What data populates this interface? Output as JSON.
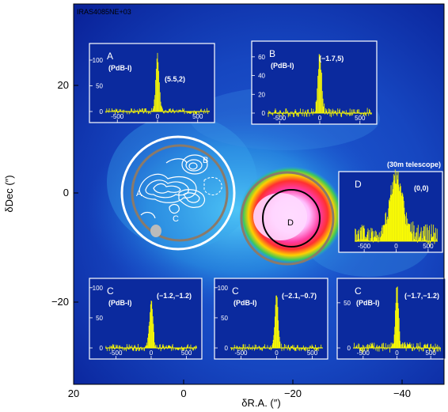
{
  "figure": {
    "source_name": "IRAS4085NE+03",
    "xlabel": "δR.A. (″)",
    "ylabel": "δDec (″)",
    "colors": {
      "background": "#0b2a9e",
      "spectrum": "#ffff00",
      "contour": "#ffffff",
      "aperture_outer": "#ffffff",
      "aperture_inner": "#8a7a6a",
      "aperture_d": "#000000"
    }
  },
  "chart_data": {
    "type": "image",
    "x_axis": {
      "label": "δR.A. (″)",
      "ticks": [
        "20",
        "0",
        "−20",
        "−40"
      ],
      "range": [
        20,
        -45
      ],
      "reversed": true
    },
    "y_axis": {
      "label": "δDec (″)",
      "ticks": [
        "−20",
        "0",
        "20"
      ],
      "range": [
        -36,
        34
      ]
    },
    "regions": [
      {
        "name": "A",
        "x": 7,
        "y": 0
      },
      {
        "name": "B",
        "x": -3,
        "y": 5
      },
      {
        "name": "C",
        "x": 1,
        "y": -4
      },
      {
        "name": "D",
        "x": -21,
        "y": -5
      }
    ],
    "insets": [
      {
        "id": "A",
        "tag": "(PdB-I)",
        "coord": "(5.5,2)",
        "xticks": [
          "-500",
          "0",
          "500"
        ],
        "yticks": [
          "0",
          "50",
          "100"
        ],
        "ymax": 120,
        "peak": 108,
        "width": 30,
        "noise": 6
      },
      {
        "id": "B",
        "tag": "(PdB-I)",
        "coord": "(−1.7,5)",
        "xticks": [
          "-500",
          "0",
          "500"
        ],
        "yticks": [
          "0",
          "20",
          "40",
          "60"
        ],
        "ymax": 70,
        "peak": 62,
        "width": 35,
        "noise": 5
      },
      {
        "id": "D",
        "tag": "(30m telescope)",
        "coord": "(0,0)",
        "xticks": [
          "-500",
          "0",
          "500"
        ],
        "yticks": [],
        "ymax": 100,
        "peak": 90,
        "width": 140,
        "noise": 12
      },
      {
        "id": "C",
        "tag": "(PdB-I)",
        "coord": "(−1.2,−1.2)",
        "xticks": [
          "-500",
          "0",
          "500"
        ],
        "yticks": [
          "0",
          "50",
          "100"
        ],
        "ymax": 105,
        "peak": 78,
        "width": 35,
        "noise": 6
      },
      {
        "id": "C",
        "tag": "(PdB-I)",
        "coord": "(−2.1,−0.7)",
        "xticks": [
          "-500",
          "0",
          "500"
        ],
        "yticks": [
          "0",
          "50",
          "100"
        ],
        "ymax": 105,
        "peak": 92,
        "width": 30,
        "noise": 6
      },
      {
        "id": "C",
        "tag": "(PdB-I)",
        "coord": "(−1.7,−1.2)",
        "xticks": [
          "-500",
          "0",
          "500"
        ],
        "yticks": [
          "0",
          "50"
        ],
        "ymax": 70,
        "peak": 66,
        "width": 35,
        "noise": 6
      }
    ]
  }
}
